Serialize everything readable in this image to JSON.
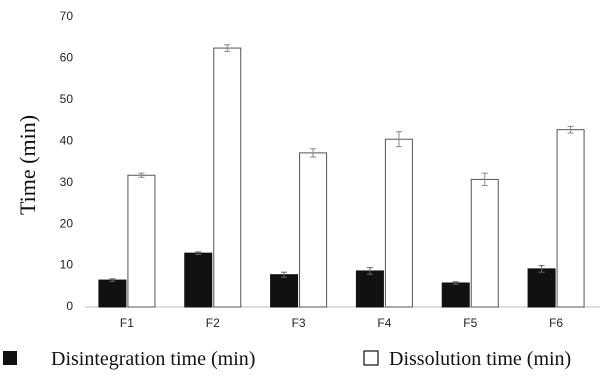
{
  "chart_data": {
    "type": "bar",
    "title": "",
    "xlabel": "",
    "ylabel": "Time (min)",
    "ylim": [
      0,
      70
    ],
    "yticks": [
      0,
      10,
      20,
      30,
      40,
      50,
      60,
      70
    ],
    "grid": false,
    "legend_position": "bottom",
    "categories": [
      "F1",
      "F2",
      "F3",
      "F4",
      "F5",
      "F6"
    ],
    "series": [
      {
        "name": "Disintegration time (min)",
        "values": [
          6.5,
          13,
          7.8,
          8.7,
          5.8,
          9.2
        ],
        "errors": [
          0.3,
          0.3,
          0.6,
          0.8,
          0.3,
          0.8
        ],
        "fill": "#111111",
        "stroke": "#111111"
      },
      {
        "name": "Dissolution time (min)",
        "values": [
          31.8,
          62.5,
          37.2,
          40.5,
          30.8,
          42.8
        ],
        "errors": [
          0.5,
          0.8,
          1.0,
          1.8,
          1.5,
          0.8
        ],
        "fill": "#ffffff",
        "stroke": "#555555"
      }
    ]
  }
}
